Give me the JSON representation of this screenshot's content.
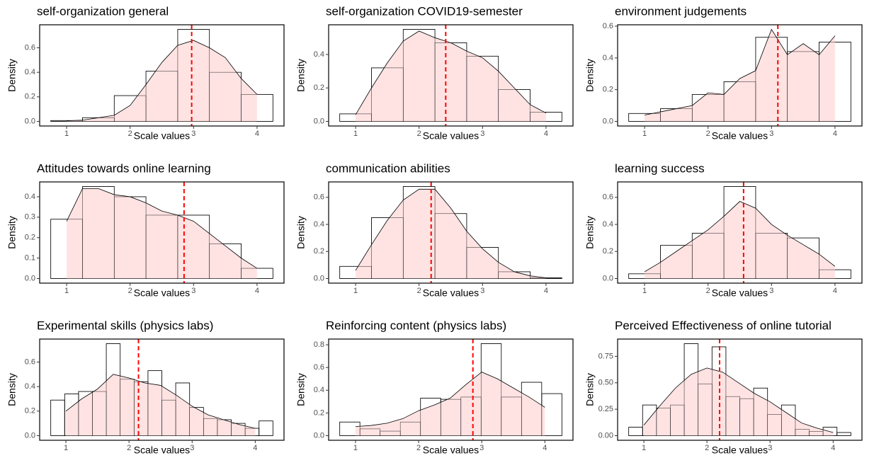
{
  "chart_data": [
    {
      "type": "histogram",
      "title": "self-organization general",
      "xlabel": "Scale values",
      "ylabel": "Density",
      "bins": [
        0.75,
        1.25,
        1.75,
        2.25,
        2.75,
        3.25,
        3.75,
        4.25
      ],
      "values": [
        0.007,
        0.03,
        0.21,
        0.41,
        0.75,
        0.4,
        0.22
      ],
      "density_x": [
        1,
        1.25,
        1.5,
        1.75,
        2,
        2.25,
        2.5,
        2.75,
        3,
        3.25,
        3.5,
        3.75,
        4
      ],
      "density_y": [
        0.005,
        0.01,
        0.03,
        0.05,
        0.13,
        0.3,
        0.48,
        0.62,
        0.66,
        0.6,
        0.52,
        0.35,
        0.22
      ],
      "mean": 2.97,
      "xlim": [
        0.575,
        4.425
      ],
      "ylim": [
        -0.0375,
        0.7875
      ],
      "xticks": [
        1,
        2,
        3,
        4
      ],
      "yticks": [
        {
          "value": 0,
          "label": "0.0"
        },
        0.2,
        0.4,
        0.6
      ],
      "hist_color": "#000000",
      "density_fill": "#ffdede",
      "density_color": "#000000",
      "mean_color": "#ff0000"
    },
    {
      "type": "histogram",
      "title": "self-organization COVID19-semester",
      "xlabel": "Scale values",
      "ylabel": "Density",
      "bins": [
        0.75,
        1.25,
        1.75,
        2.25,
        2.75,
        3.25,
        3.75,
        4.25
      ],
      "values": [
        0.045,
        0.32,
        0.55,
        0.47,
        0.39,
        0.19,
        0.055
      ],
      "density_x": [
        1,
        1.25,
        1.5,
        1.75,
        2,
        2.25,
        2.5,
        2.75,
        3,
        3.25,
        3.5,
        3.75,
        4
      ],
      "density_y": [
        0.04,
        0.2,
        0.35,
        0.48,
        0.54,
        0.5,
        0.47,
        0.42,
        0.38,
        0.3,
        0.2,
        0.1,
        0.05
      ],
      "mean": 2.42,
      "xlim": [
        0.575,
        4.425
      ],
      "ylim": [
        -0.0275,
        0.5775
      ],
      "xticks": [
        1,
        2,
        3,
        4
      ],
      "yticks": [
        {
          "value": 0,
          "label": "0.0"
        },
        0.2,
        0.4
      ],
      "hist_color": "#000000",
      "density_fill": "#ffdede",
      "density_color": "#000000",
      "mean_color": "#ff0000"
    },
    {
      "type": "histogram",
      "title": "environment judgements",
      "xlabel": "Scale values",
      "ylabel": "Density",
      "bins": [
        0.75,
        1.25,
        1.75,
        2.25,
        2.75,
        3.25,
        3.75,
        4.25
      ],
      "values": [
        0.05,
        0.08,
        0.17,
        0.25,
        0.53,
        0.44,
        0.5
      ],
      "density_x": [
        1,
        1.25,
        1.5,
        1.75,
        2,
        2.25,
        2.5,
        2.75,
        3,
        3.25,
        3.5,
        3.75,
        4
      ],
      "density_y": [
        0.04,
        0.06,
        0.08,
        0.1,
        0.18,
        0.17,
        0.27,
        0.32,
        0.58,
        0.42,
        0.49,
        0.42,
        0.54
      ],
      "mean": 3.1,
      "xlim": [
        0.575,
        4.425
      ],
      "ylim": [
        -0.029,
        0.609
      ],
      "xticks": [
        1,
        2,
        3,
        4
      ],
      "yticks": [
        {
          "value": 0,
          "label": "0.0"
        },
        0.2,
        0.4,
        0.6
      ],
      "hist_color": "#000000",
      "density_fill": "#ffdede",
      "density_color": "#000000",
      "mean_color": "#ff0000"
    },
    {
      "type": "histogram",
      "title": "Attitudes towards online learning",
      "xlabel": "Scale values",
      "ylabel": "Density",
      "bins": [
        0.75,
        1.25,
        1.75,
        2.25,
        2.75,
        3.25,
        3.75,
        4.25
      ],
      "values": [
        0.29,
        0.45,
        0.4,
        0.31,
        0.31,
        0.17,
        0.05
      ],
      "density_x": [
        1,
        1.25,
        1.5,
        1.75,
        2,
        2.25,
        2.5,
        2.75,
        3,
        3.25,
        3.5,
        3.75,
        4
      ],
      "density_y": [
        0.28,
        0.44,
        0.44,
        0.41,
        0.4,
        0.37,
        0.33,
        0.31,
        0.28,
        0.22,
        0.16,
        0.1,
        0.05
      ],
      "mean": 2.85,
      "xlim": [
        0.575,
        4.425
      ],
      "ylim": [
        -0.0225,
        0.4725
      ],
      "xticks": [
        1,
        2,
        3,
        4
      ],
      "yticks": [
        {
          "value": 0,
          "label": "0.0"
        },
        0.1,
        0.2,
        0.3,
        0.4
      ],
      "hist_color": "#000000",
      "density_fill": "#ffdede",
      "density_color": "#000000",
      "mean_color": "#ff0000"
    },
    {
      "type": "histogram",
      "title": "communication abilities",
      "xlabel": "Scale values",
      "ylabel": "Density",
      "bins": [
        0.75,
        1.25,
        1.75,
        2.25,
        2.75,
        3.25,
        3.75,
        4.25
      ],
      "values": [
        0.09,
        0.45,
        0.68,
        0.48,
        0.23,
        0.05,
        0.005
      ],
      "density_x": [
        1,
        1.25,
        1.5,
        1.75,
        2,
        2.25,
        2.5,
        2.75,
        3,
        3.25,
        3.5,
        3.75,
        4
      ],
      "density_y": [
        0.06,
        0.25,
        0.43,
        0.58,
        0.66,
        0.66,
        0.52,
        0.35,
        0.22,
        0.12,
        0.05,
        0.02,
        0.005
      ],
      "mean": 2.19,
      "xlim": [
        0.575,
        4.425
      ],
      "ylim": [
        -0.034,
        0.714
      ],
      "xticks": [
        1,
        2,
        3,
        4
      ],
      "yticks": [
        {
          "value": 0,
          "label": "0.0"
        },
        0.2,
        0.4,
        0.6
      ],
      "hist_color": "#000000",
      "density_fill": "#ffdede",
      "density_color": "#000000",
      "mean_color": "#ff0000"
    },
    {
      "type": "histogram",
      "title": "learning success",
      "xlabel": "Scale values",
      "ylabel": "Density",
      "bins": [
        0.75,
        1.25,
        1.75,
        2.25,
        2.75,
        3.25,
        3.75,
        4.25
      ],
      "values": [
        0.035,
        0.245,
        0.335,
        0.68,
        0.335,
        0.3,
        0.065
      ],
      "density_x": [
        1,
        1.25,
        1.5,
        1.75,
        2,
        2.25,
        2.5,
        2.75,
        3,
        3.25,
        3.5,
        3.75,
        4
      ],
      "density_y": [
        0.05,
        0.12,
        0.2,
        0.28,
        0.36,
        0.46,
        0.57,
        0.52,
        0.4,
        0.32,
        0.25,
        0.18,
        0.09
      ],
      "mean": 2.56,
      "xlim": [
        0.575,
        4.425
      ],
      "ylim": [
        -0.034,
        0.714
      ],
      "xticks": [
        1,
        2,
        3,
        4
      ],
      "yticks": [
        {
          "value": 0,
          "label": "0.0"
        },
        0.2,
        0.4,
        0.6
      ],
      "hist_color": "#000000",
      "density_fill": "#ffdede",
      "density_color": "#000000",
      "mean_color": "#ff0000"
    },
    {
      "type": "histogram",
      "title": "Experimental skills (physics labs)",
      "xlabel": "Scale values",
      "ylabel": "Density",
      "bins": [
        0.76,
        0.98,
        1.2,
        1.42,
        1.64,
        1.86,
        2.08,
        2.3,
        2.52,
        2.74,
        2.96,
        3.18,
        3.4,
        3.62,
        3.84,
        4.06,
        4.28
      ],
      "values": [
        0.29,
        0.34,
        0.36,
        0.36,
        0.75,
        0.46,
        0.44,
        0.53,
        0.29,
        0.43,
        0.23,
        0.14,
        0.13,
        0.1,
        0.06,
        0.12
      ],
      "density_x": [
        1,
        1.25,
        1.5,
        1.75,
        2,
        2.25,
        2.5,
        2.75,
        3,
        3.25,
        3.5,
        3.75,
        4
      ],
      "density_y": [
        0.2,
        0.3,
        0.38,
        0.5,
        0.47,
        0.43,
        0.41,
        0.33,
        0.24,
        0.17,
        0.13,
        0.09,
        0.06
      ],
      "mean": 2.15,
      "xlim": [
        0.584,
        4.456
      ],
      "ylim": [
        -0.0375,
        0.7875
      ],
      "xticks": [
        1,
        2,
        3,
        4
      ],
      "yticks": [
        {
          "value": 0,
          "label": "0.0"
        },
        0.2,
        0.4,
        0.6
      ],
      "hist_color": "#000000",
      "density_fill": "#ffdede",
      "density_color": "#000000",
      "mean_color": "#ff0000"
    },
    {
      "type": "histogram",
      "title": "Reinforcing content (physics labs)",
      "xlabel": "Scale values",
      "ylabel": "Density",
      "bins": [
        0.75,
        1.07,
        1.39,
        1.71,
        2.03,
        2.35,
        2.67,
        2.99,
        3.31,
        3.63,
        3.95,
        4.27
      ],
      "values": [
        0.12,
        0.06,
        0.04,
        0.12,
        0.33,
        0.32,
        0.34,
        0.81,
        0.34,
        0.47,
        0.37
      ],
      "density_x": [
        1,
        1.25,
        1.5,
        1.75,
        2,
        2.25,
        2.5,
        2.75,
        3,
        3.25,
        3.5,
        3.75,
        4
      ],
      "density_y": [
        0.08,
        0.09,
        0.11,
        0.15,
        0.22,
        0.27,
        0.33,
        0.45,
        0.56,
        0.5,
        0.42,
        0.34,
        0.25
      ],
      "mean": 2.86,
      "xlim": [
        0.574,
        4.446
      ],
      "ylim": [
        -0.0405,
        0.8505
      ],
      "xticks": [
        1,
        2,
        3,
        4
      ],
      "yticks": [
        {
          "value": 0,
          "label": "0.0"
        },
        0.2,
        0.4,
        0.6,
        0.8
      ],
      "hist_color": "#000000",
      "density_fill": "#ffdede",
      "density_color": "#000000",
      "mean_color": "#ff0000"
    },
    {
      "type": "histogram",
      "title": "Perceived Effectiveness of online tutorial",
      "xlabel": "Scale values",
      "ylabel": "Density",
      "bins": [
        0.76,
        0.98,
        1.2,
        1.42,
        1.64,
        1.86,
        2.08,
        2.3,
        2.52,
        2.74,
        2.96,
        3.18,
        3.4,
        3.62,
        3.84,
        4.06,
        4.28
      ],
      "values": [
        0.08,
        0.29,
        0.26,
        0.29,
        0.87,
        0.49,
        0.84,
        0.37,
        0.35,
        0.45,
        0.2,
        0.29,
        0.06,
        0.04,
        0.08,
        0.03
      ],
      "density_x": [
        1,
        1.25,
        1.5,
        1.75,
        2,
        2.25,
        2.5,
        2.75,
        3,
        3.25,
        3.5,
        3.75,
        4
      ],
      "density_y": [
        0.1,
        0.28,
        0.45,
        0.58,
        0.64,
        0.6,
        0.5,
        0.4,
        0.32,
        0.22,
        0.12,
        0.07,
        0.03
      ],
      "mean": 2.2,
      "xlim": [
        0.584,
        4.456
      ],
      "ylim": [
        -0.0435,
        0.9135
      ],
      "xticks": [
        1,
        2,
        3,
        4
      ],
      "yticks": [
        {
          "value": 0,
          "label": "0.00"
        },
        0.25,
        {
          "value": 0.5,
          "label": "0.50"
        },
        0.75
      ],
      "hist_color": "#000000",
      "density_fill": "#ffdede",
      "density_color": "#000000",
      "mean_color": "#ff0000"
    }
  ]
}
